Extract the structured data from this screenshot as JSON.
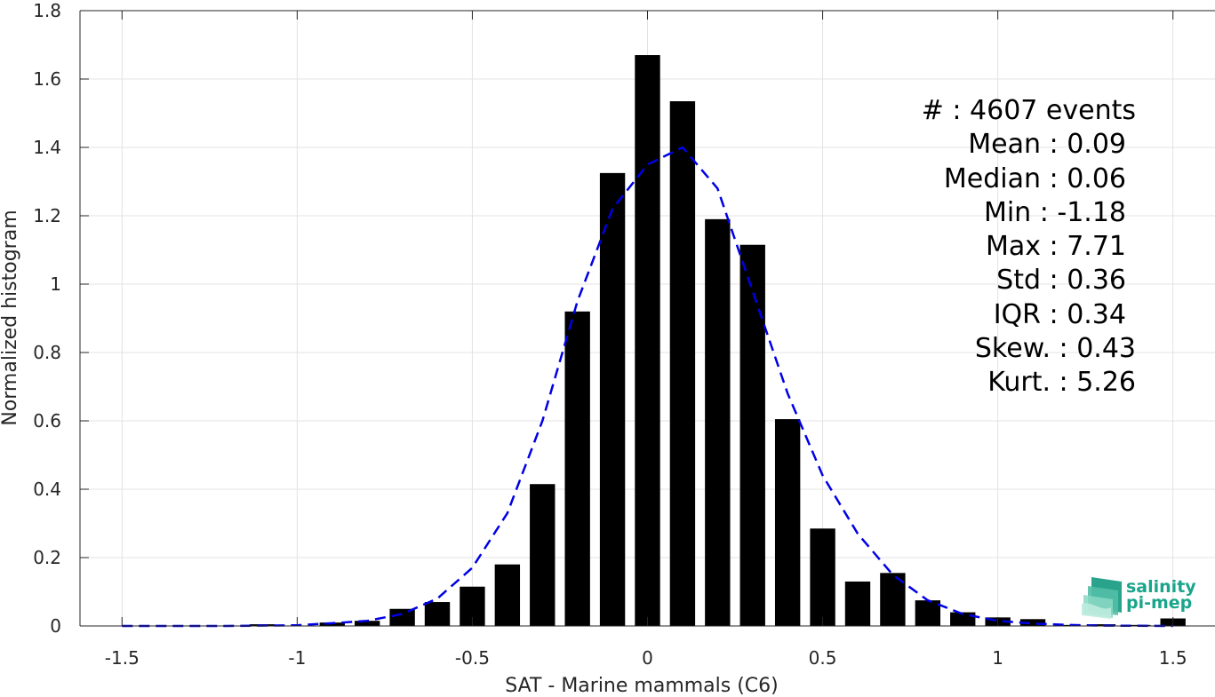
{
  "chart_data": {
    "type": "bar",
    "xlabel": "SAT - Marine mammals (C6)",
    "ylabel": "Normalized histogram",
    "xlim": [
      -1.62,
      1.62
    ],
    "ylim": [
      0,
      1.8
    ],
    "xticks": [
      -1.5,
      -1,
      -0.5,
      0,
      0.5,
      1,
      1.5
    ],
    "xtick_labels": [
      "-1.5",
      "-1",
      "-0.5",
      "0",
      "0.5",
      "1",
      "1.5"
    ],
    "yticks": [
      0,
      0.2,
      0.4,
      0.6,
      0.8,
      1,
      1.2,
      1.4,
      1.6,
      1.8
    ],
    "ytick_labels": [
      "0",
      "0.2",
      "0.4",
      "0.6",
      "0.8",
      "1",
      "1.2",
      "1.4",
      "1.6",
      "1.8"
    ],
    "grid": true,
    "bin_width": 0.1,
    "bars": {
      "x": [
        -1.5,
        -1.4,
        -1.3,
        -1.2,
        -1.1,
        -1.0,
        -0.9,
        -0.8,
        -0.7,
        -0.6,
        -0.5,
        -0.4,
        -0.3,
        -0.2,
        -0.1,
        0.0,
        0.1,
        0.2,
        0.3,
        0.4,
        0.5,
        0.6,
        0.7,
        0.8,
        0.9,
        1.0,
        1.1,
        1.2,
        1.3,
        1.4,
        1.5
      ],
      "values": [
        0,
        0,
        0,
        0,
        0.005,
        0,
        0.01,
        0.015,
        0.05,
        0.07,
        0.115,
        0.18,
        0.415,
        0.92,
        1.325,
        1.67,
        1.535,
        1.19,
        1.115,
        0.605,
        0.285,
        0.13,
        0.155,
        0.075,
        0.04,
        0.025,
        0.02,
        0.003,
        0.005,
        0.003,
        0.022
      ],
      "color": "#000000"
    },
    "fit_curve": {
      "style": "dashed",
      "color": "#0000e6",
      "x": [
        -1.5,
        -1.2,
        -1.0,
        -0.9,
        -0.8,
        -0.7,
        -0.6,
        -0.5,
        -0.4,
        -0.3,
        -0.2,
        -0.1,
        0.0,
        0.1,
        0.2,
        0.3,
        0.4,
        0.5,
        0.6,
        0.7,
        0.8,
        0.9,
        1.0,
        1.1,
        1.2,
        1.3,
        1.5
      ],
      "y": [
        0,
        0,
        0.002,
        0.008,
        0.015,
        0.035,
        0.08,
        0.17,
        0.33,
        0.6,
        0.95,
        1.22,
        1.35,
        1.4,
        1.28,
        0.98,
        0.68,
        0.44,
        0.27,
        0.15,
        0.075,
        0.035,
        0.015,
        0.007,
        0.003,
        0.001,
        0
      ]
    },
    "annotations": {
      "stats": [
        "#  : 4607 events",
        "Mean : 0.09",
        "Median : 0.06",
        "Min : -1.18",
        "Max : 7.71",
        "Std : 0.36",
        "IQR : 0.34",
        "Skew. : 0.43",
        "Kurt. : 5.26"
      ]
    }
  },
  "logo": {
    "line1": "salinity",
    "line2": "pi-mep",
    "color": "#1aa58a"
  }
}
